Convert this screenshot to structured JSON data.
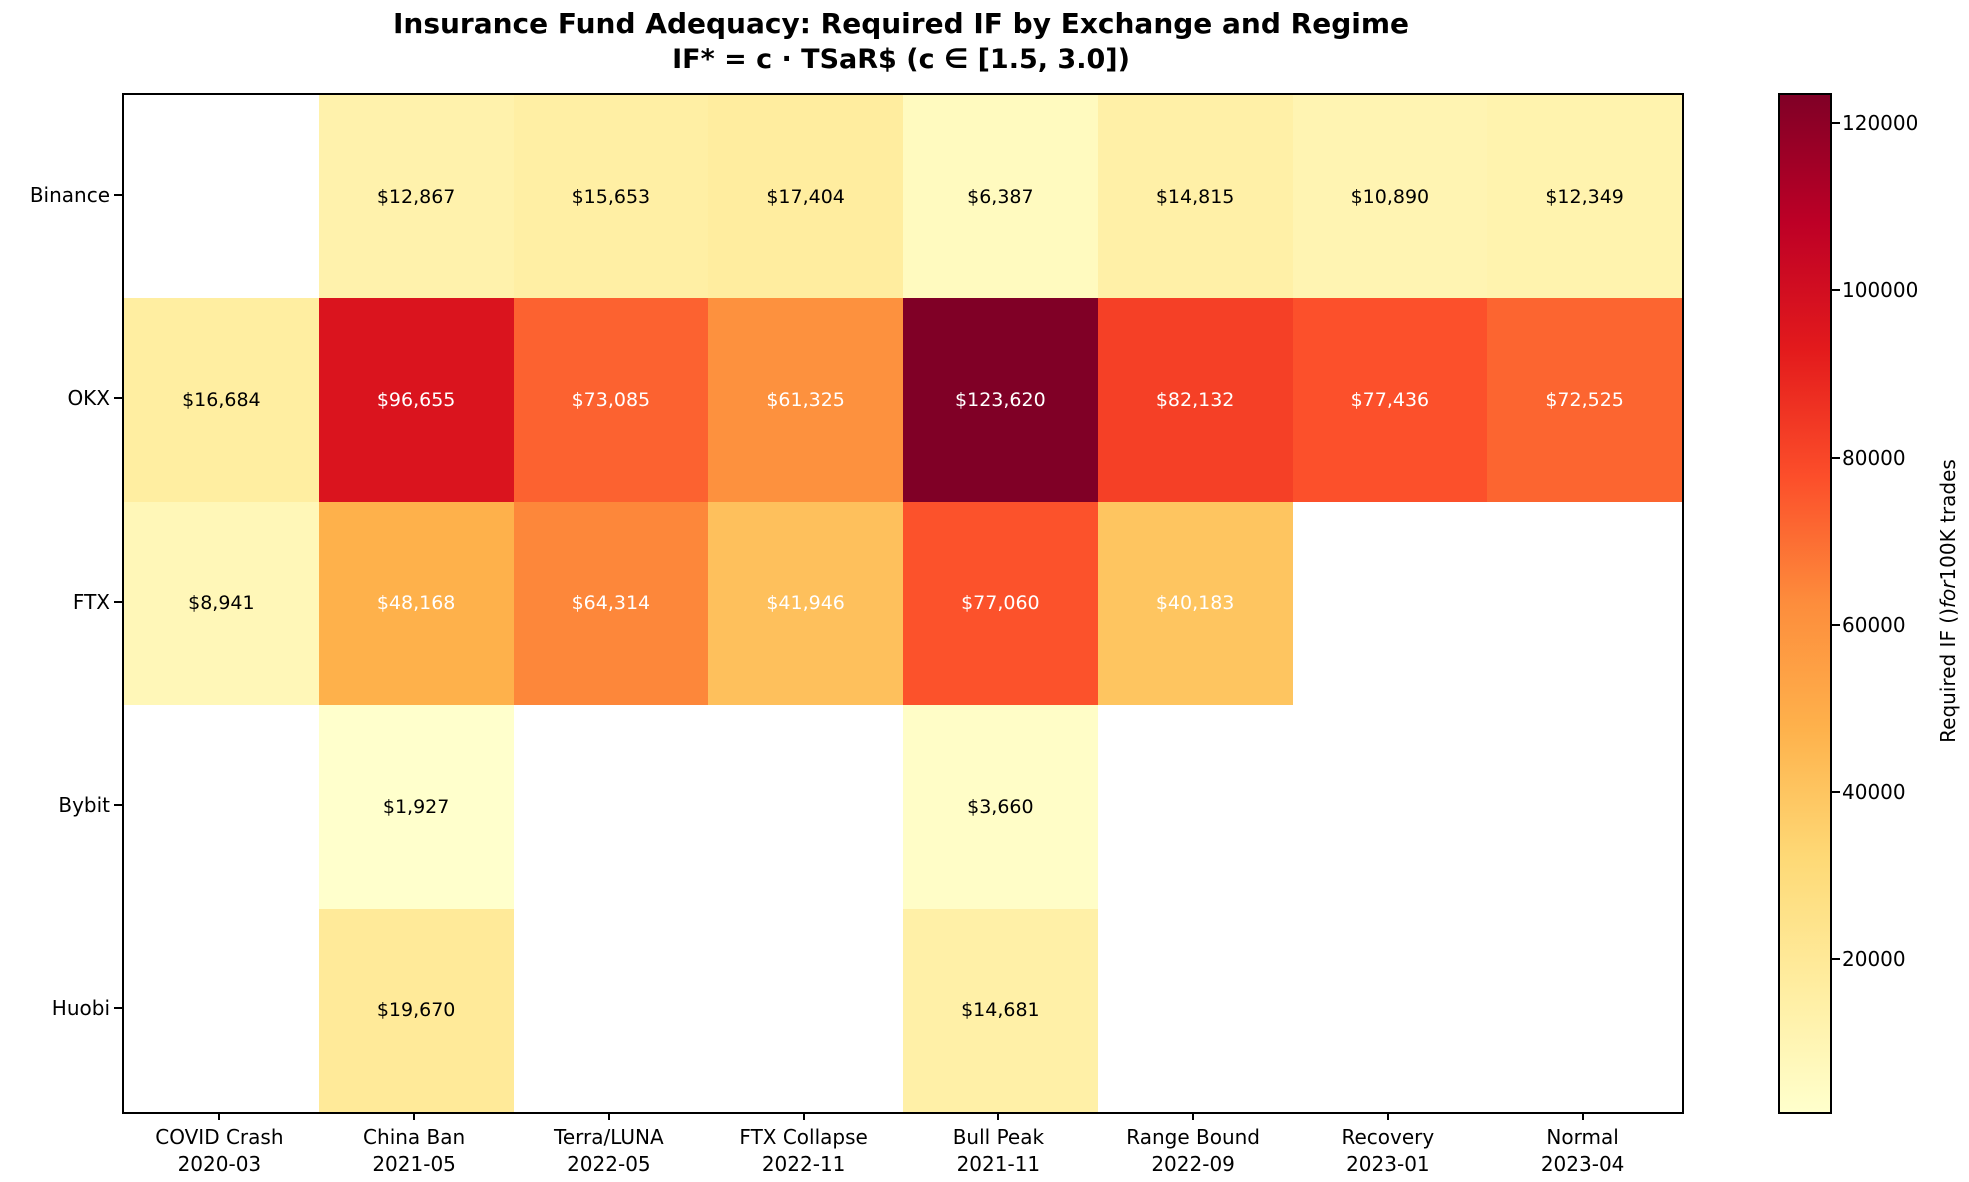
{
  "title": {
    "line1": "Insurance Fund Adequacy: Required IF by Exchange and Regime",
    "line2": "IF* = c · TSaR$ (c ∈ [1.5, 3.0])"
  },
  "chart_data": {
    "type": "heatmap",
    "title": "Insurance Fund Adequacy: Required IF by Exchange and Regime",
    "subtitle": "IF* = c · TSaR$ (c ∈ [1.5, 3.0])",
    "rows": [
      "Binance",
      "OKX",
      "FTX",
      "Bybit",
      "Huobi"
    ],
    "columns": [
      {
        "label": "COVID Crash",
        "sublabel": "2020-03"
      },
      {
        "label": "China Ban",
        "sublabel": "2021-05"
      },
      {
        "label": "Terra/LUNA",
        "sublabel": "2022-05"
      },
      {
        "label": "FTX Collapse",
        "sublabel": "2022-11"
      },
      {
        "label": "Bull Peak",
        "sublabel": "2021-11"
      },
      {
        "label": "Range Bound",
        "sublabel": "2022-09"
      },
      {
        "label": "Recovery",
        "sublabel": "2023-01"
      },
      {
        "label": "Normal",
        "sublabel": "2023-04"
      }
    ],
    "values": [
      [
        null,
        12867,
        15653,
        17404,
        6387,
        14815,
        10890,
        12349
      ],
      [
        16684,
        96655,
        73085,
        61325,
        123620,
        82132,
        77436,
        72525
      ],
      [
        8941,
        48168,
        64314,
        41946,
        77060,
        40183,
        null,
        null
      ],
      [
        null,
        1927,
        null,
        null,
        3660,
        null,
        null,
        null
      ],
      [
        null,
        19670,
        null,
        null,
        14681,
        null,
        null,
        null
      ]
    ],
    "value_prefix": "$",
    "vmin": 1927,
    "vmax": 123620,
    "colormap": {
      "name": "YlOrRd",
      "stops": [
        "#ffffcc",
        "#ffeda0",
        "#fed976",
        "#feb24c",
        "#fd8d3c",
        "#fc4e2a",
        "#e31a1c",
        "#bd0026",
        "#800026"
      ]
    },
    "missing_color": "#ffffff",
    "annotation_colors": {
      "dark": "#000000",
      "light": "#ffffff"
    },
    "colorbar": {
      "ticks": [
        20000,
        40000,
        60000,
        80000,
        100000,
        120000
      ],
      "label_prefix": "Required IF ()",
      "label_italic": "for",
      "label_suffix": "100K trades"
    },
    "legend_position": "right",
    "grid": false
  }
}
